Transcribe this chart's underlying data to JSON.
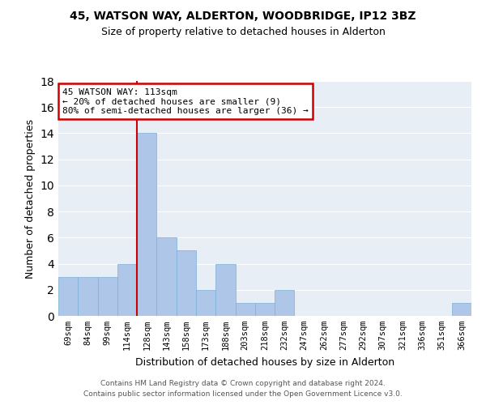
{
  "title1": "45, WATSON WAY, ALDERTON, WOODBRIDGE, IP12 3BZ",
  "title2": "Size of property relative to detached houses in Alderton",
  "xlabel": "Distribution of detached houses by size in Alderton",
  "ylabel": "Number of detached properties",
  "categories": [
    "69sqm",
    "84sqm",
    "99sqm",
    "114sqm",
    "128sqm",
    "143sqm",
    "158sqm",
    "173sqm",
    "188sqm",
    "203sqm",
    "218sqm",
    "232sqm",
    "247sqm",
    "262sqm",
    "277sqm",
    "292sqm",
    "307sqm",
    "321sqm",
    "336sqm",
    "351sqm",
    "366sqm"
  ],
  "values": [
    3,
    3,
    3,
    4,
    14,
    6,
    5,
    2,
    4,
    1,
    1,
    2,
    0,
    0,
    0,
    0,
    0,
    0,
    0,
    0,
    1
  ],
  "bar_color": "#aec6e8",
  "bar_edge_color": "#7aaed6",
  "annotation_title": "45 WATSON WAY: 113sqm",
  "annotation_line1": "← 20% of detached houses are smaller (9)",
  "annotation_line2": "80% of semi-detached houses are larger (36) →",
  "annotation_box_facecolor": "#ffffff",
  "annotation_box_edgecolor": "#cc0000",
  "vline_color": "#cc0000",
  "vline_x": 3.5,
  "ylim": [
    0,
    18
  ],
  "yticks": [
    0,
    2,
    4,
    6,
    8,
    10,
    12,
    14,
    16,
    18
  ],
  "bg_color": "#e8eef5",
  "grid_color": "#ffffff",
  "footer1": "Contains HM Land Registry data © Crown copyright and database right 2024.",
  "footer2": "Contains public sector information licensed under the Open Government Licence v3.0."
}
